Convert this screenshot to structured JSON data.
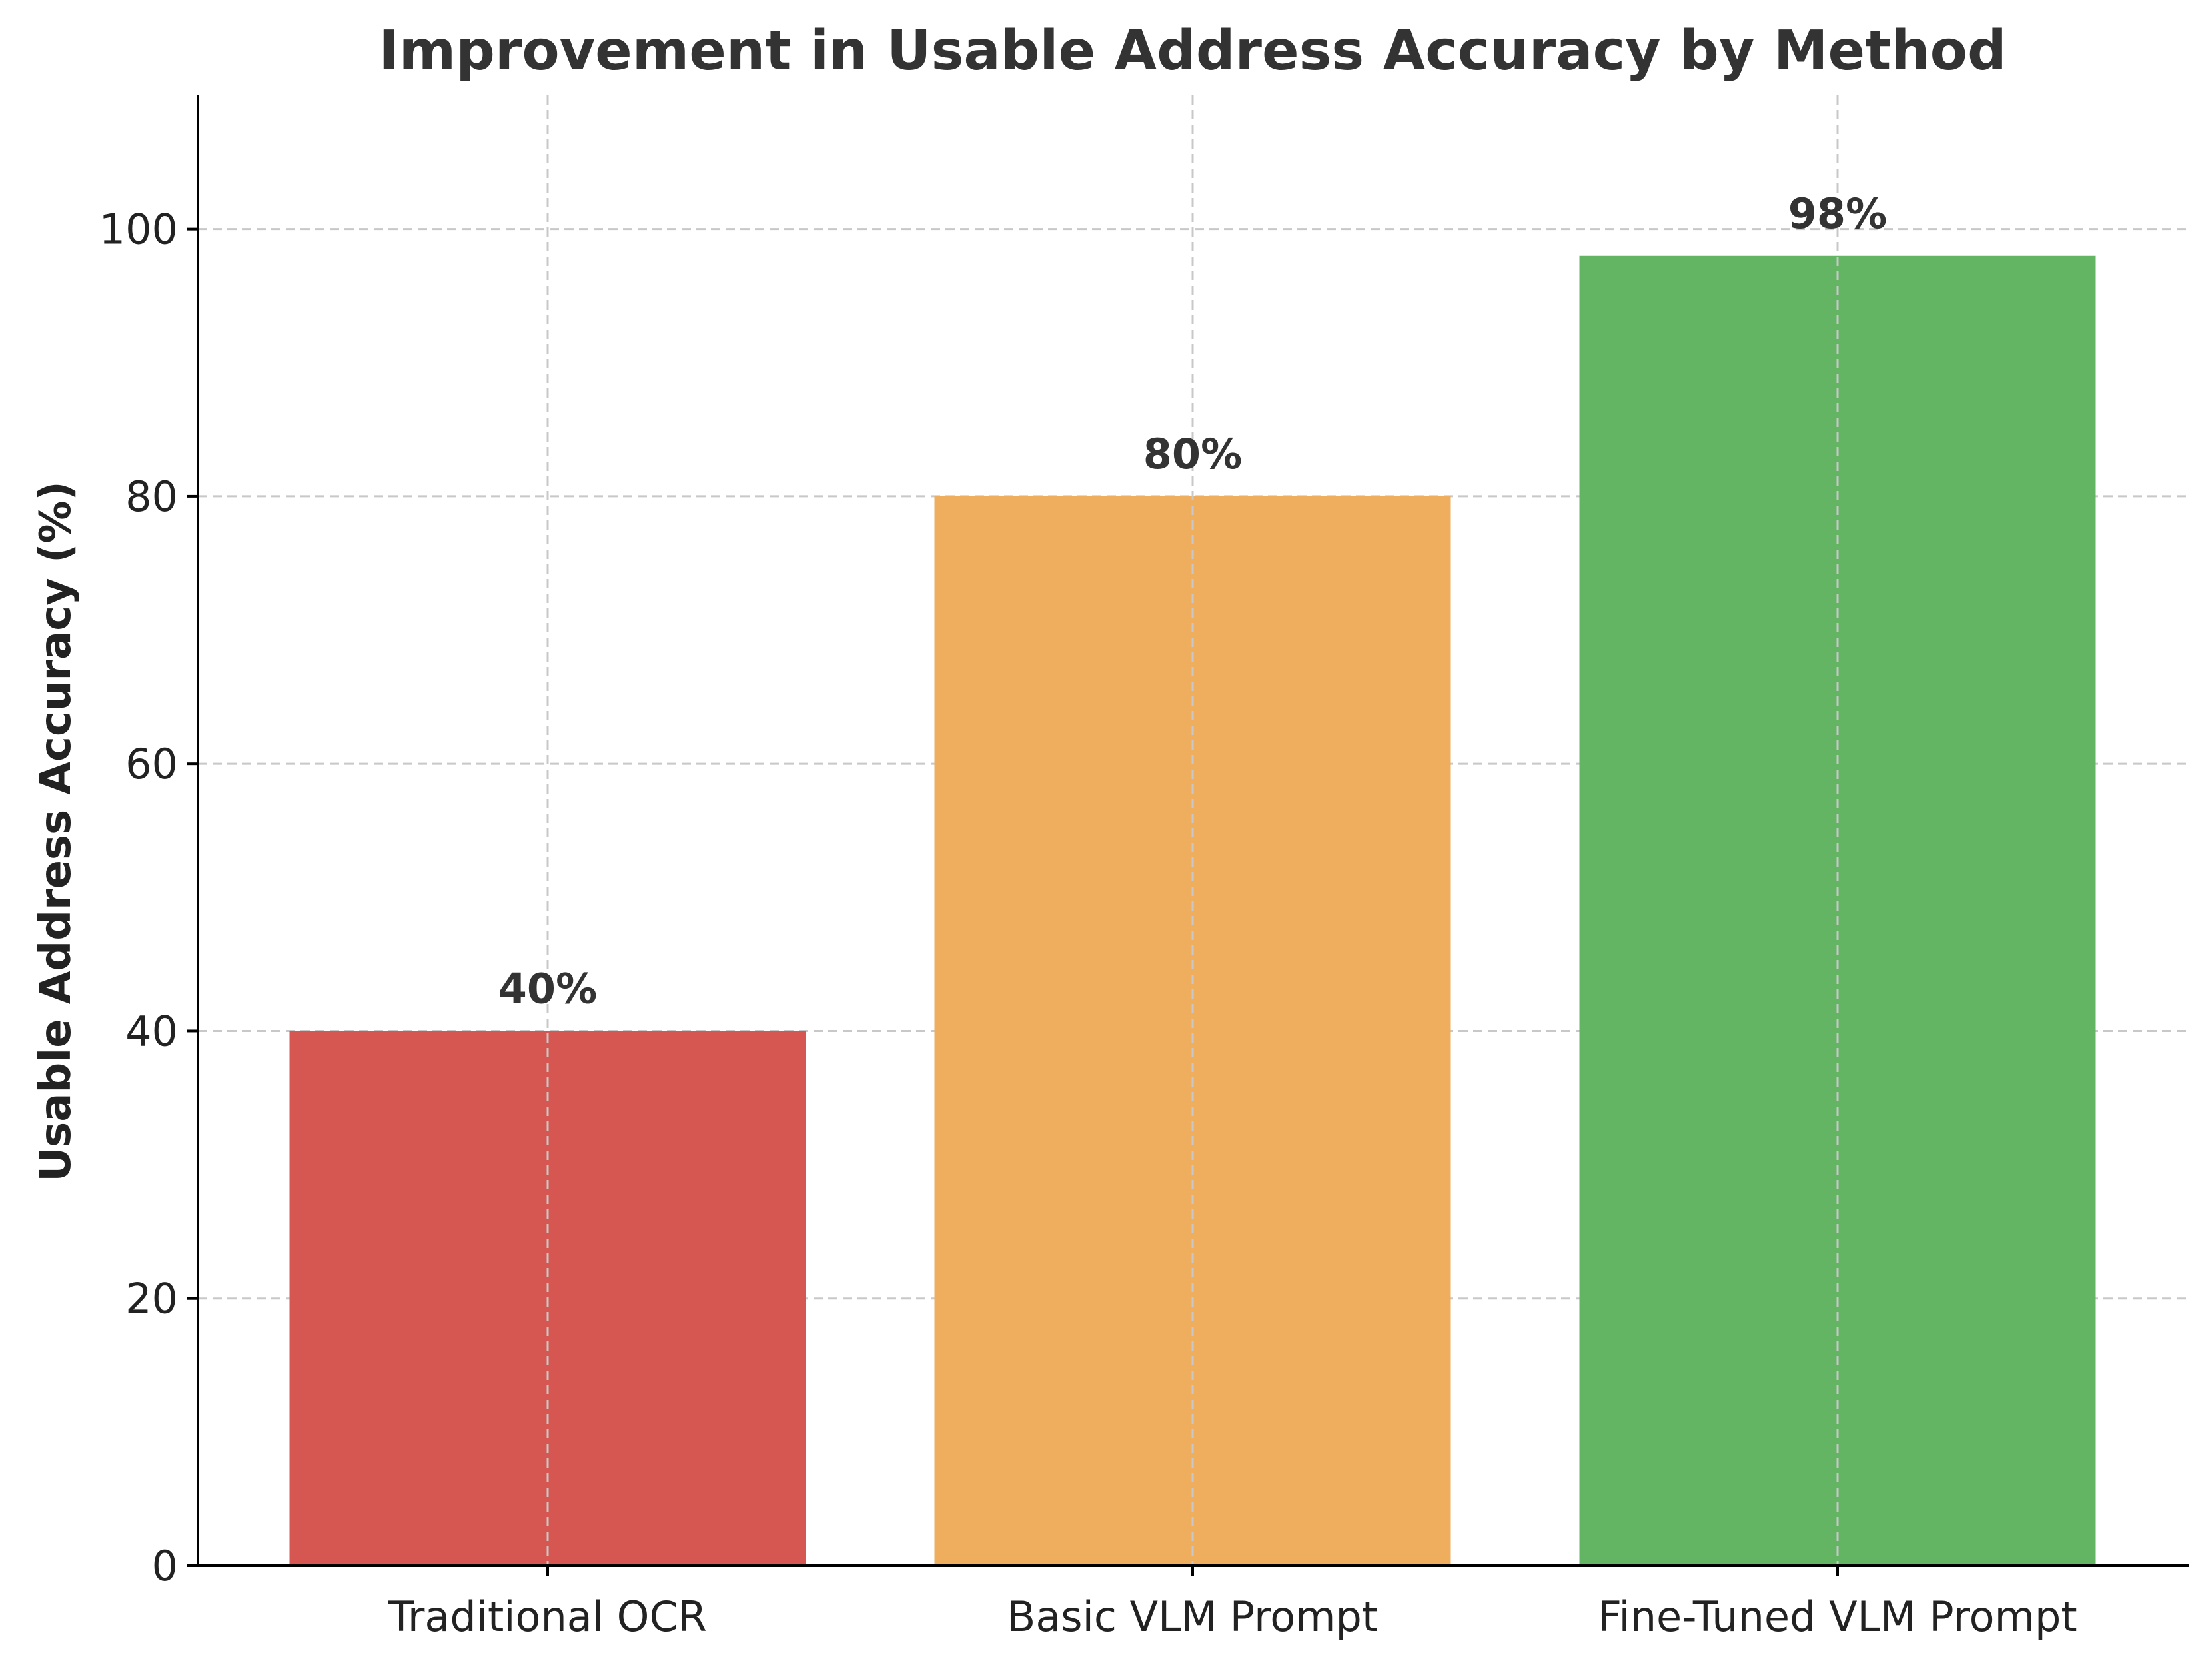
{
  "chart_data": {
    "type": "bar",
    "title": "Improvement in Usable Address Accuracy by Method",
    "xlabel": "",
    "ylabel": "Usable Address Accuracy (%)",
    "categories": [
      "Traditional OCR",
      "Basic VLM Prompt",
      "Fine-Tuned VLM Prompt"
    ],
    "values": [
      40,
      80,
      98
    ],
    "value_labels": [
      "40%",
      "80%",
      "98%"
    ],
    "colors": [
      "#d65751",
      "#eeae5e",
      "#63b564"
    ],
    "ylim": [
      0,
      110
    ],
    "yticks": [
      0,
      20,
      40,
      60,
      80,
      100
    ],
    "ytick_labels": [
      "0",
      "20",
      "40",
      "60",
      "80",
      "100"
    ],
    "grid": true,
    "legend": false
  }
}
